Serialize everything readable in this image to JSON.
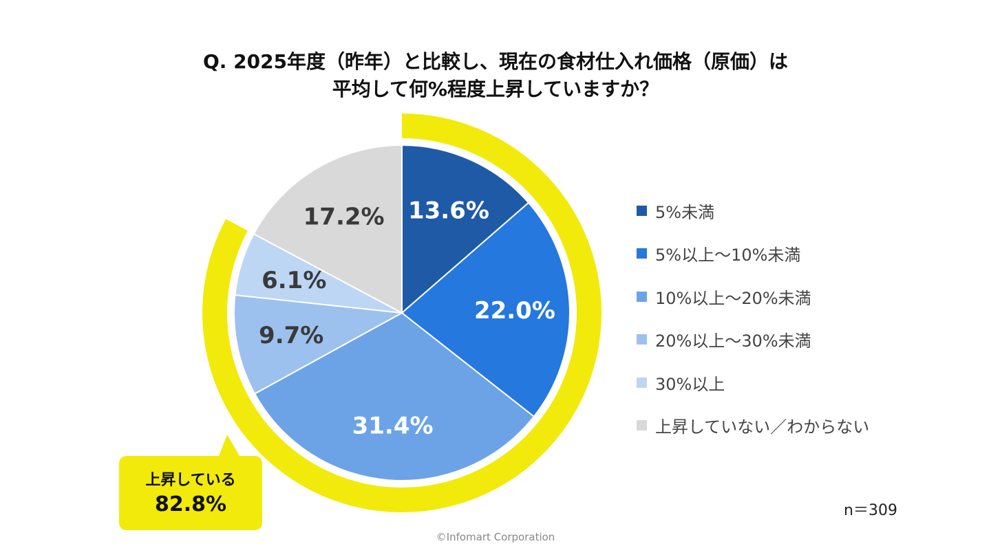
{
  "title": {
    "line1": "Q. 2025年度（昨年）と比較し、現在の食材仕入れ価格（原価）は",
    "line2": "平均して何%程度上昇していますか？"
  },
  "chart_data": {
    "type": "pie",
    "categories": [
      "5%未満",
      "5%以上～10%未満",
      "10%以上～20%未満",
      "20%以上～30%未満",
      "30%以上",
      "上昇していない／わからない"
    ],
    "values": [
      13.6,
      22.0,
      31.4,
      9.7,
      6.1,
      17.2
    ],
    "value_labels": [
      "13.6%",
      "22.0%",
      "31.4%",
      "9.7%",
      "6.1%",
      "17.2%"
    ],
    "colors": [
      "#1F5AA6",
      "#2578DE",
      "#6CA3E6",
      "#9DC1EE",
      "#BDD6F4",
      "#D9D9D9"
    ],
    "label_colors": [
      "#FFFFFF",
      "#FFFFFF",
      "#FFFFFF",
      "#3A3A3A",
      "#3A3A3A",
      "#3A3A3A"
    ],
    "legend_position": "right",
    "highlight": {
      "color": "#F2EA0B",
      "label_line1": "上昇している",
      "label_line2": "82.8%"
    }
  },
  "sample_size": "n＝309",
  "copyright": "©Infomart Corporation"
}
